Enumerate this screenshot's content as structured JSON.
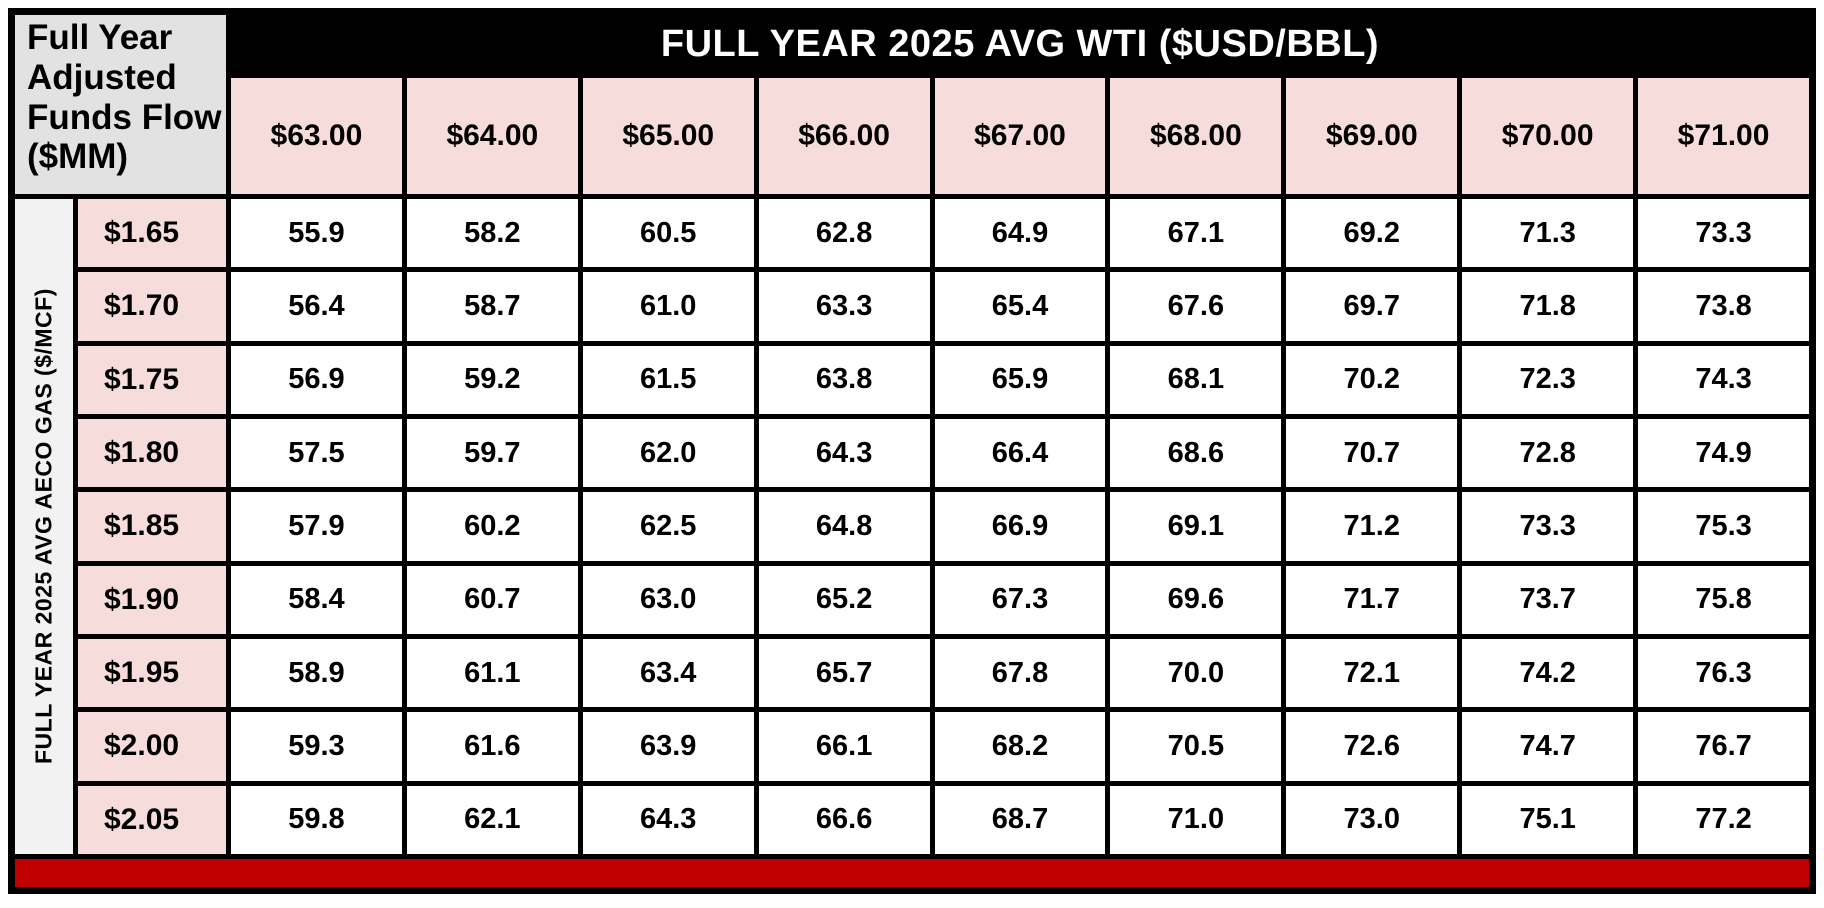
{
  "page": {
    "corner_label": "Full Year Adjusted Funds Flow ($MM)",
    "top_axis_title": "FULL YEAR 2025 AVG WTI ($USD/BBL)",
    "side_axis_title": "FULL YEAR 2025 AVG AECO GAS ($/MCF)"
  },
  "colors": {
    "header_bar_bg": "#000000",
    "header_bar_text": "#FFFFFF",
    "pink_header_bg": "#F7DCDC",
    "corner_bg": "#E2E2E2",
    "side_label_bg": "#F2F2F2",
    "data_cell_bg": "#FFFFFF",
    "bottom_bar": "#C00000",
    "border": "#000000"
  },
  "chart_data": {
    "type": "table",
    "title": "Full Year Adjusted Funds Flow ($MM)",
    "columns_axis_title": "FULL YEAR 2025 AVG WTI ($USD/BBL)",
    "rows_axis_title": "FULL YEAR 2025 AVG AECO GAS ($/MCF)",
    "columns": [
      "$63.00",
      "$64.00",
      "$65.00",
      "$66.00",
      "$67.00",
      "$68.00",
      "$69.00",
      "$70.00",
      "$71.00"
    ],
    "rows": [
      "$1.65",
      "$1.70",
      "$1.75",
      "$1.80",
      "$1.85",
      "$1.90",
      "$1.95",
      "$2.00",
      "$2.05"
    ],
    "values": [
      [
        55.9,
        58.2,
        60.5,
        62.8,
        64.9,
        67.1,
        69.2,
        71.3,
        73.3
      ],
      [
        56.4,
        58.7,
        61.0,
        63.3,
        65.4,
        67.6,
        69.7,
        71.8,
        73.8
      ],
      [
        56.9,
        59.2,
        61.5,
        63.8,
        65.9,
        68.1,
        70.2,
        72.3,
        74.3
      ],
      [
        57.5,
        59.7,
        62.0,
        64.3,
        66.4,
        68.6,
        70.7,
        72.8,
        74.9
      ],
      [
        57.9,
        60.2,
        62.5,
        64.8,
        66.9,
        69.1,
        71.2,
        73.3,
        75.3
      ],
      [
        58.4,
        60.7,
        63.0,
        65.2,
        67.3,
        69.6,
        71.7,
        73.7,
        75.8
      ],
      [
        58.9,
        61.1,
        63.4,
        65.7,
        67.8,
        70.0,
        72.1,
        74.2,
        76.3
      ],
      [
        59.3,
        61.6,
        63.9,
        66.1,
        68.2,
        70.5,
        72.6,
        74.7,
        76.7
      ],
      [
        59.8,
        62.1,
        64.3,
        66.6,
        68.7,
        71.0,
        73.0,
        75.1,
        77.2
      ]
    ]
  }
}
